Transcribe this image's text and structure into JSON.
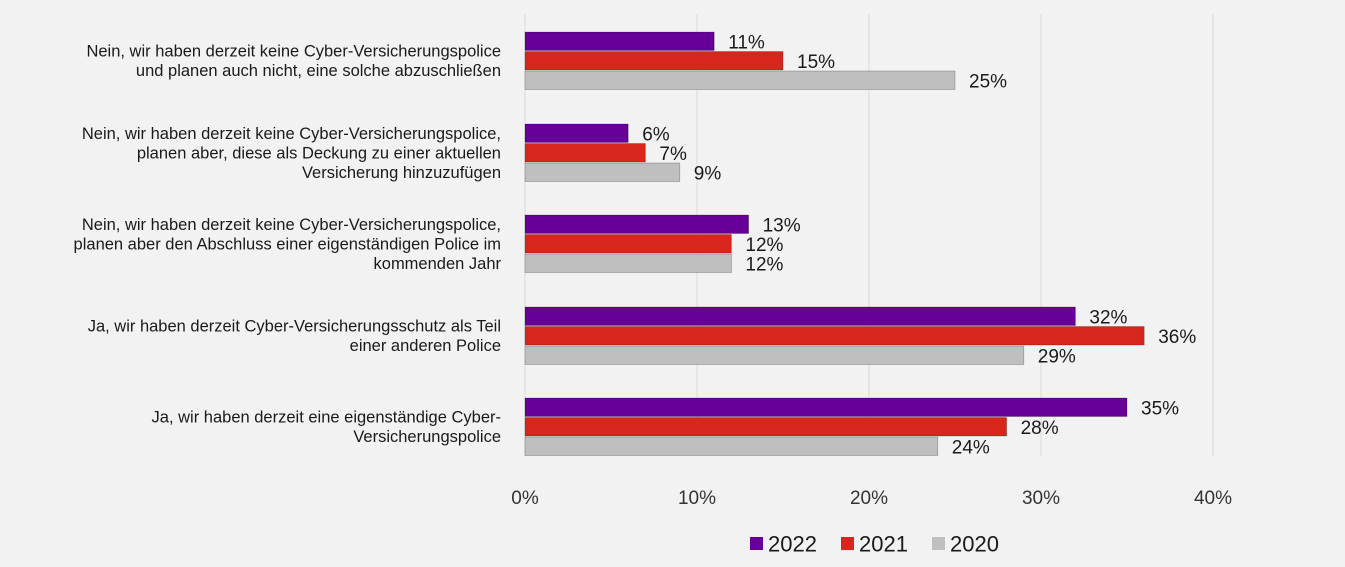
{
  "chart_data": {
    "type": "bar",
    "orientation": "horizontal",
    "categories": [
      [
        "Nein, wir haben derzeit keine Cyber-Versicherungspolice",
        "und planen auch nicht, eine solche abzuschließen"
      ],
      [
        "Nein, wir haben derzeit keine Cyber-Versicherungspolice,",
        "planen aber, diese als Deckung zu einer aktuellen",
        "Versicherung hinzuzufügen"
      ],
      [
        "Nein, wir haben derzeit keine Cyber-Versicherungspolice,",
        "planen aber den Abschluss einer eigenständigen Police im",
        "kommenden Jahr"
      ],
      [
        "Ja, wir haben derzeit Cyber-Versicherungsschutz als Teil",
        "einer anderen Police"
      ],
      [
        "Ja, wir haben derzeit eine eigenständige Cyber-",
        "Versicherungspolice"
      ]
    ],
    "series": [
      {
        "name": "2022",
        "color": "#660099",
        "values": [
          11,
          6,
          13,
          32,
          35
        ],
        "labels": [
          "11%",
          "6%",
          "13%",
          "32%",
          "35%"
        ]
      },
      {
        "name": "2021",
        "color": "#d9261c",
        "values": [
          15,
          7,
          12,
          36,
          28
        ],
        "labels": [
          "15%",
          "7%",
          "12%",
          "36%",
          "28%"
        ]
      },
      {
        "name": "2020",
        "color": "#bfbfbf",
        "values": [
          25,
          9,
          12,
          29,
          24
        ],
        "labels": [
          "25%",
          "9%",
          "12%",
          "29%",
          "24%"
        ]
      }
    ],
    "xlim": [
      0,
      40
    ],
    "xticks": [
      0,
      10,
      20,
      30,
      40
    ],
    "xtick_labels": [
      "0%",
      "10%",
      "20%",
      "30%",
      "40%"
    ],
    "grid": "vertical",
    "legend": "bottom"
  }
}
